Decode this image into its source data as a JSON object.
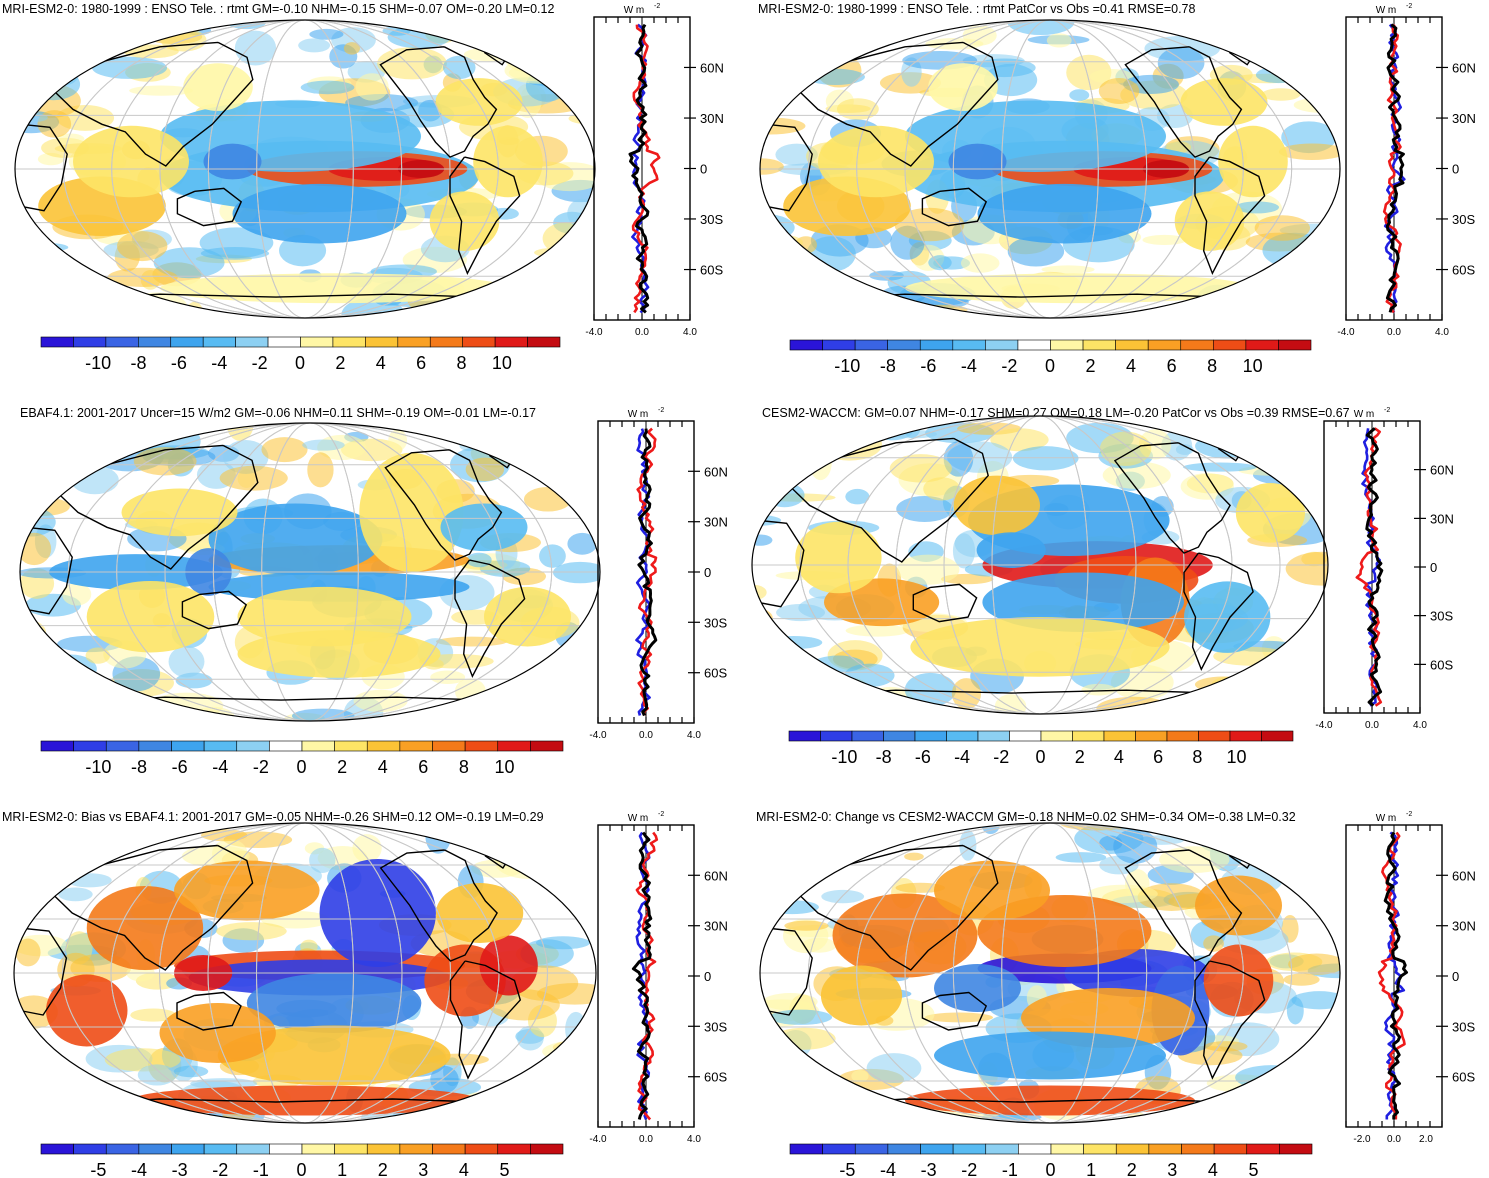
{
  "chart_data": [
    {
      "type": "heatmap",
      "title": "MRI-ESM2-0: 1980-1999 : ENSO Tele. : rtmt GM=-0.10 NHM=-0.15 SHM=-0.07 OM=-0.20 LM=0.12",
      "colorbar_ticks": [
        "-10",
        "-8",
        "-6",
        "-4",
        "-2",
        "0",
        "2",
        "4",
        "6",
        "8",
        "10"
      ],
      "zonal_units": "W m",
      "zonal_units_exp": "-2",
      "zonal_xticks": [
        "-4.0",
        "0.0",
        "4.0"
      ],
      "zonal_xlim": [
        -4.0,
        4.0
      ],
      "lat_ticks": [
        "60N",
        "30N",
        "0",
        "30S",
        "60S"
      ],
      "pattern": "enso_model"
    },
    {
      "type": "heatmap",
      "title": "MRI-ESM2-0: 1980-1999 : ENSO Tele. : rtmt PatCor vs Obs =0.41 RMSE=0.78",
      "colorbar_ticks": [
        "-10",
        "-8",
        "-6",
        "-4",
        "-2",
        "0",
        "2",
        "4",
        "6",
        "8",
        "10"
      ],
      "zonal_units": "W m",
      "zonal_units_exp": "-2",
      "zonal_xticks": [
        "-4.0",
        "0.0",
        "4.0"
      ],
      "zonal_xlim": [
        -4.0,
        4.0
      ],
      "lat_ticks": [
        "60N",
        "30N",
        "0",
        "30S",
        "60S"
      ],
      "pattern": "enso_model"
    },
    {
      "type": "heatmap",
      "title": "EBAF4.1: 2001-2017 Uncer=15 W/m2 GM=-0.06 NHM=0.11 SHM=-0.19 OM=-0.01 LM=-0.17",
      "colorbar_ticks": [
        "-10",
        "-8",
        "-6",
        "-4",
        "-2",
        "0",
        "2",
        "4",
        "6",
        "8",
        "10"
      ],
      "zonal_units": "W m",
      "zonal_units_exp": "-2",
      "zonal_xticks": [
        "-4.0",
        "0.0",
        "4.0"
      ],
      "zonal_xlim": [
        -4.0,
        4.0
      ],
      "lat_ticks": [
        "60N",
        "30N",
        "0",
        "30S",
        "60S"
      ],
      "pattern": "obs"
    },
    {
      "type": "heatmap",
      "title": "CESM2-WACCM: GM=0.07 NHM=-0.17 SHM=0.27 OM=0.18 LM=-0.20 PatCor vs Obs =0.39 RMSE=0.67",
      "colorbar_ticks": [
        "-10",
        "-8",
        "-6",
        "-4",
        "-2",
        "0",
        "2",
        "4",
        "6",
        "8",
        "10"
      ],
      "zonal_units": "W m",
      "zonal_units_exp": "-2",
      "zonal_xticks": [
        "-4.0",
        "0.0",
        "4.0"
      ],
      "zonal_xlim": [
        -4.0,
        4.0
      ],
      "lat_ticks": [
        "60N",
        "30N",
        "0",
        "30S",
        "60S"
      ],
      "pattern": "cesm"
    },
    {
      "type": "heatmap",
      "title": "MRI-ESM2-0: Bias vs EBAF4.1: 2001-2017 GM=-0.05 NHM=-0.26 SHM=0.12 OM=-0.19 LM=0.29",
      "colorbar_ticks": [
        "-5",
        "-4",
        "-3",
        "-2",
        "-1",
        "0",
        "1",
        "2",
        "3",
        "4",
        "5"
      ],
      "zonal_units": "W m",
      "zonal_units_exp": "-2",
      "zonal_xticks": [
        "-4.0",
        "0.0",
        "4.0"
      ],
      "zonal_xlim": [
        -4.0,
        4.0
      ],
      "lat_ticks": [
        "60N",
        "30N",
        "0",
        "30S",
        "60S"
      ],
      "pattern": "bias"
    },
    {
      "type": "heatmap",
      "title": "MRI-ESM2-0: Change vs CESM2-WACCM GM=-0.18 NHM=0.02 SHM=-0.34 OM=-0.38 LM=0.32",
      "colorbar_ticks": [
        "-5",
        "-4",
        "-3",
        "-2",
        "-1",
        "0",
        "1",
        "2",
        "3",
        "4",
        "5"
      ],
      "zonal_units": "W m",
      "zonal_units_exp": "-2",
      "zonal_xticks": [
        "-2.0",
        "0.0",
        "2.0"
      ],
      "zonal_xlim": [
        -3.0,
        3.0
      ],
      "lat_ticks": [
        "60N",
        "30N",
        "0",
        "30S",
        "60S"
      ],
      "pattern": "change"
    }
  ],
  "colors": {
    "palette": [
      "#2a14d8",
      "#2f3ee6",
      "#3a64e4",
      "#3f86e2",
      "#3ea4ee",
      "#58bbf2",
      "#8dd0f2",
      "#ffffff",
      "#fff7a6",
      "#fde466",
      "#fbc336",
      "#f9a024",
      "#f47a1a",
      "#ee4d16",
      "#e01a18",
      "#c40c12"
    ],
    "zonal_series": [
      "#1f1fe0",
      "#ee1a1a",
      "#000000"
    ]
  }
}
